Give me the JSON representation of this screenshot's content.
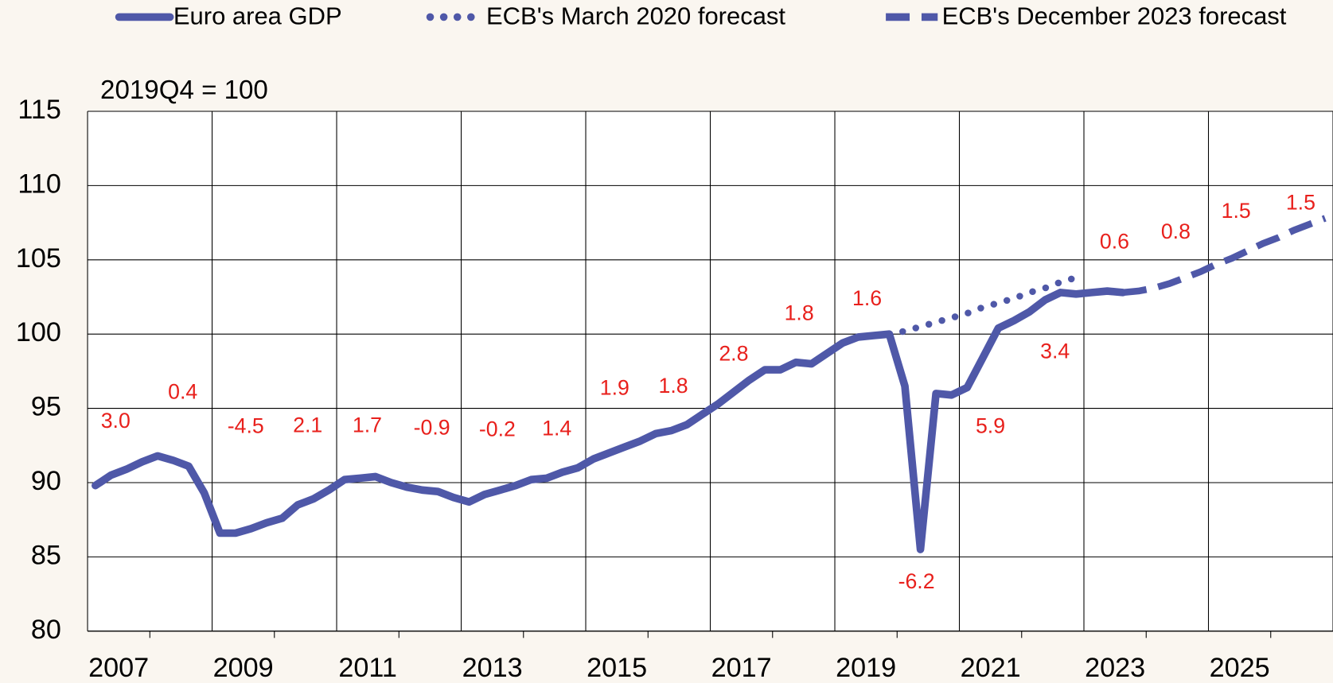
{
  "chart_data": {
    "type": "line",
    "unit_label": "2019Q4 = 100",
    "xlim": [
      2007,
      2027
    ],
    "xticks": [
      2007,
      2009,
      2011,
      2013,
      2015,
      2017,
      2019,
      2021,
      2023,
      2025,
      2027
    ],
    "xtick_labels": [
      "2007",
      "2009",
      "2011",
      "2013",
      "2015",
      "2017",
      "2019",
      "2021",
      "2023",
      "2025"
    ],
    "ylim": [
      80,
      115
    ],
    "yticks": [
      80,
      85,
      90,
      95,
      100,
      105,
      110,
      115
    ],
    "grid": true,
    "legend": "top",
    "series": [
      {
        "name": "Euro area GDP",
        "color": "#4f58a8",
        "style": "solid",
        "x": [
          2007.125,
          2007.375,
          2007.625,
          2007.875,
          2008.125,
          2008.375,
          2008.625,
          2008.875,
          2009.125,
          2009.375,
          2009.625,
          2009.875,
          2010.125,
          2010.375,
          2010.625,
          2010.875,
          2011.125,
          2011.375,
          2011.625,
          2011.875,
          2012.125,
          2012.375,
          2012.625,
          2012.875,
          2013.125,
          2013.375,
          2013.625,
          2013.875,
          2014.125,
          2014.375,
          2014.625,
          2014.875,
          2015.125,
          2015.375,
          2015.625,
          2015.875,
          2016.125,
          2016.375,
          2016.625,
          2016.875,
          2017.125,
          2017.375,
          2017.625,
          2017.875,
          2018.125,
          2018.375,
          2018.625,
          2018.875,
          2019.125,
          2019.375,
          2019.625,
          2019.875,
          2020.125,
          2020.375,
          2020.625,
          2020.875,
          2021.125,
          2021.375,
          2021.625,
          2021.875,
          2022.125,
          2022.375,
          2022.625,
          2022.875,
          2023.125,
          2023.375,
          2023.625
        ],
        "values": [
          89.8,
          90.5,
          90.9,
          91.4,
          91.8,
          91.5,
          91.1,
          89.3,
          86.6,
          86.6,
          86.9,
          87.3,
          87.6,
          88.5,
          88.9,
          89.5,
          90.2,
          90.3,
          90.4,
          90.0,
          89.7,
          89.5,
          89.4,
          89.0,
          88.7,
          89.2,
          89.5,
          89.8,
          90.2,
          90.3,
          90.7,
          91.0,
          91.6,
          92.0,
          92.4,
          92.8,
          93.3,
          93.5,
          93.9,
          94.6,
          95.3,
          96.1,
          96.9,
          97.6,
          97.6,
          98.1,
          98.0,
          98.7,
          99.4,
          99.8,
          99.9,
          100.0,
          96.5,
          85.5,
          96.0,
          95.9,
          96.4,
          98.4,
          100.4,
          100.9,
          101.5,
          102.3,
          102.8,
          102.7,
          102.8,
          102.9,
          102.8
        ]
      },
      {
        "name": "ECB's March 2020 forecast",
        "color": "#4f58a8",
        "style": "dotted",
        "x": [
          2019.875,
          2020.125,
          2020.375,
          2020.625,
          2020.875,
          2021.125,
          2021.375,
          2021.625,
          2021.875,
          2022.125,
          2022.375,
          2022.625,
          2022.875
        ],
        "values": [
          100.0,
          100.2,
          100.5,
          100.8,
          101.1,
          101.4,
          101.8,
          102.1,
          102.4,
          102.8,
          103.1,
          103.5,
          103.8
        ]
      },
      {
        "name": "ECB's December 2023 forecast",
        "color": "#4f58a8",
        "style": "dashed",
        "x": [
          2023.625,
          2023.875,
          2024.125,
          2024.375,
          2024.625,
          2024.875,
          2025.125,
          2025.375,
          2025.625,
          2025.875,
          2026.125,
          2026.375,
          2026.625,
          2026.875
        ],
        "values": [
          102.8,
          102.9,
          103.1,
          103.4,
          103.8,
          104.2,
          104.7,
          105.1,
          105.6,
          106.1,
          106.5,
          107.0,
          107.4,
          107.8
        ]
      }
    ],
    "annotation_color": "#e8201c",
    "annotations": [
      "3.0",
      "0.4",
      "-4.5",
      "2.1",
      "1.7",
      "-0.9",
      "-0.2",
      "1.4",
      "1.9",
      "1.8",
      "2.8",
      "1.8",
      "1.6",
      "-6.2",
      "5.9",
      "3.4",
      "0.6",
      "0.8",
      "1.5",
      "1.5"
    ]
  }
}
